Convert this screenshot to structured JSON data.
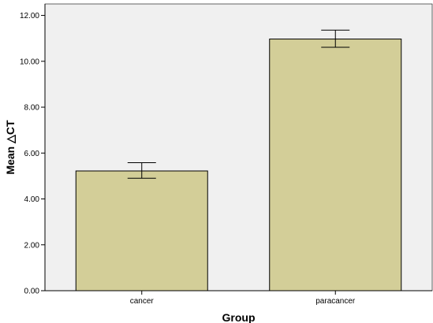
{
  "chart_data": {
    "type": "bar",
    "title": "",
    "xlabel": "Group",
    "ylabel": "Mean △CT",
    "categories": [
      "cancer",
      "paracancer"
    ],
    "values": [
      5.22,
      10.97
    ],
    "error_low": [
      4.9,
      10.61
    ],
    "error_high": [
      5.58,
      11.36
    ],
    "ylim": [
      0,
      12.5
    ],
    "yticks": [
      0,
      2,
      4,
      6,
      8,
      10,
      12
    ],
    "ytick_labels": [
      "0.00",
      "2.00",
      "4.00",
      "6.00",
      "8.00",
      "10.00",
      "12.00"
    ],
    "grid": false,
    "legend": "none",
    "colors": {
      "plot_background": "#f0f0f0",
      "bar_fill": "#d3ce98",
      "bar_stroke": "#000000"
    }
  }
}
